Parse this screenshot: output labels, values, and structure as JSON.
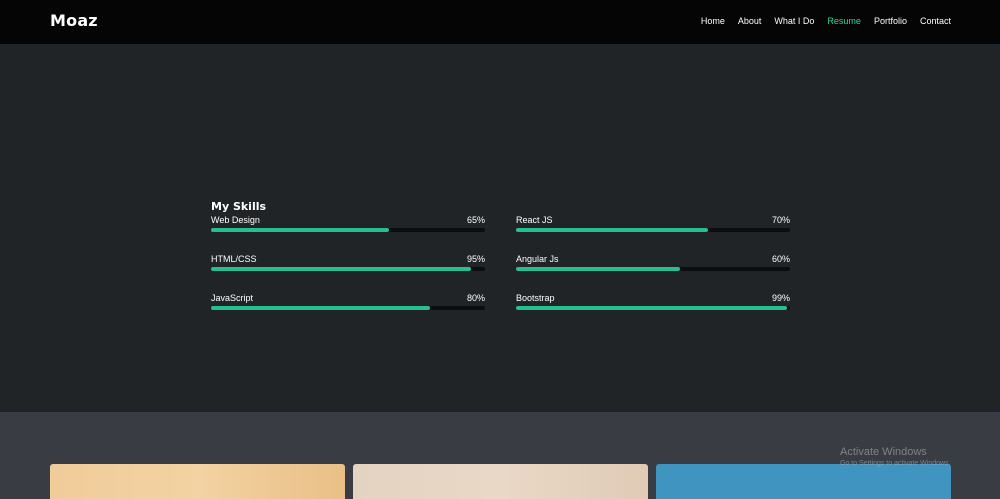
{
  "brand": "Moaz",
  "nav": [
    {
      "label": "Home",
      "active": false
    },
    {
      "label": "About",
      "active": false
    },
    {
      "label": "What I Do",
      "active": false
    },
    {
      "label": "Resume",
      "active": true
    },
    {
      "label": "Portfolio",
      "active": false
    },
    {
      "label": "Contact",
      "active": false
    }
  ],
  "skills": {
    "heading": "My Skills",
    "items": [
      {
        "name": "Web Design",
        "percent_label": "65%",
        "level": 0.65
      },
      {
        "name": "React JS",
        "percent_label": "70%",
        "level": 0.7
      },
      {
        "name": "HTML/CSS",
        "percent_label": "95%",
        "level": 0.95
      },
      {
        "name": "Angular Js",
        "percent_label": "60%",
        "level": 0.6
      },
      {
        "name": "JavaScript",
        "percent_label": "80%",
        "level": 0.8
      },
      {
        "name": "Bootstrap",
        "percent_label": "99%",
        "level": 0.99
      }
    ]
  },
  "colors": {
    "accent": "#2bd69a",
    "bar_fill": "#25c08d",
    "bar_track": "#0b0d0e",
    "page_bg": "#212427",
    "nav_bg": "#050505",
    "section_bg": "#393c43"
  },
  "watermark": {
    "title": "Activate Windows",
    "subtitle": "Go to Settings to activate Windows."
  }
}
